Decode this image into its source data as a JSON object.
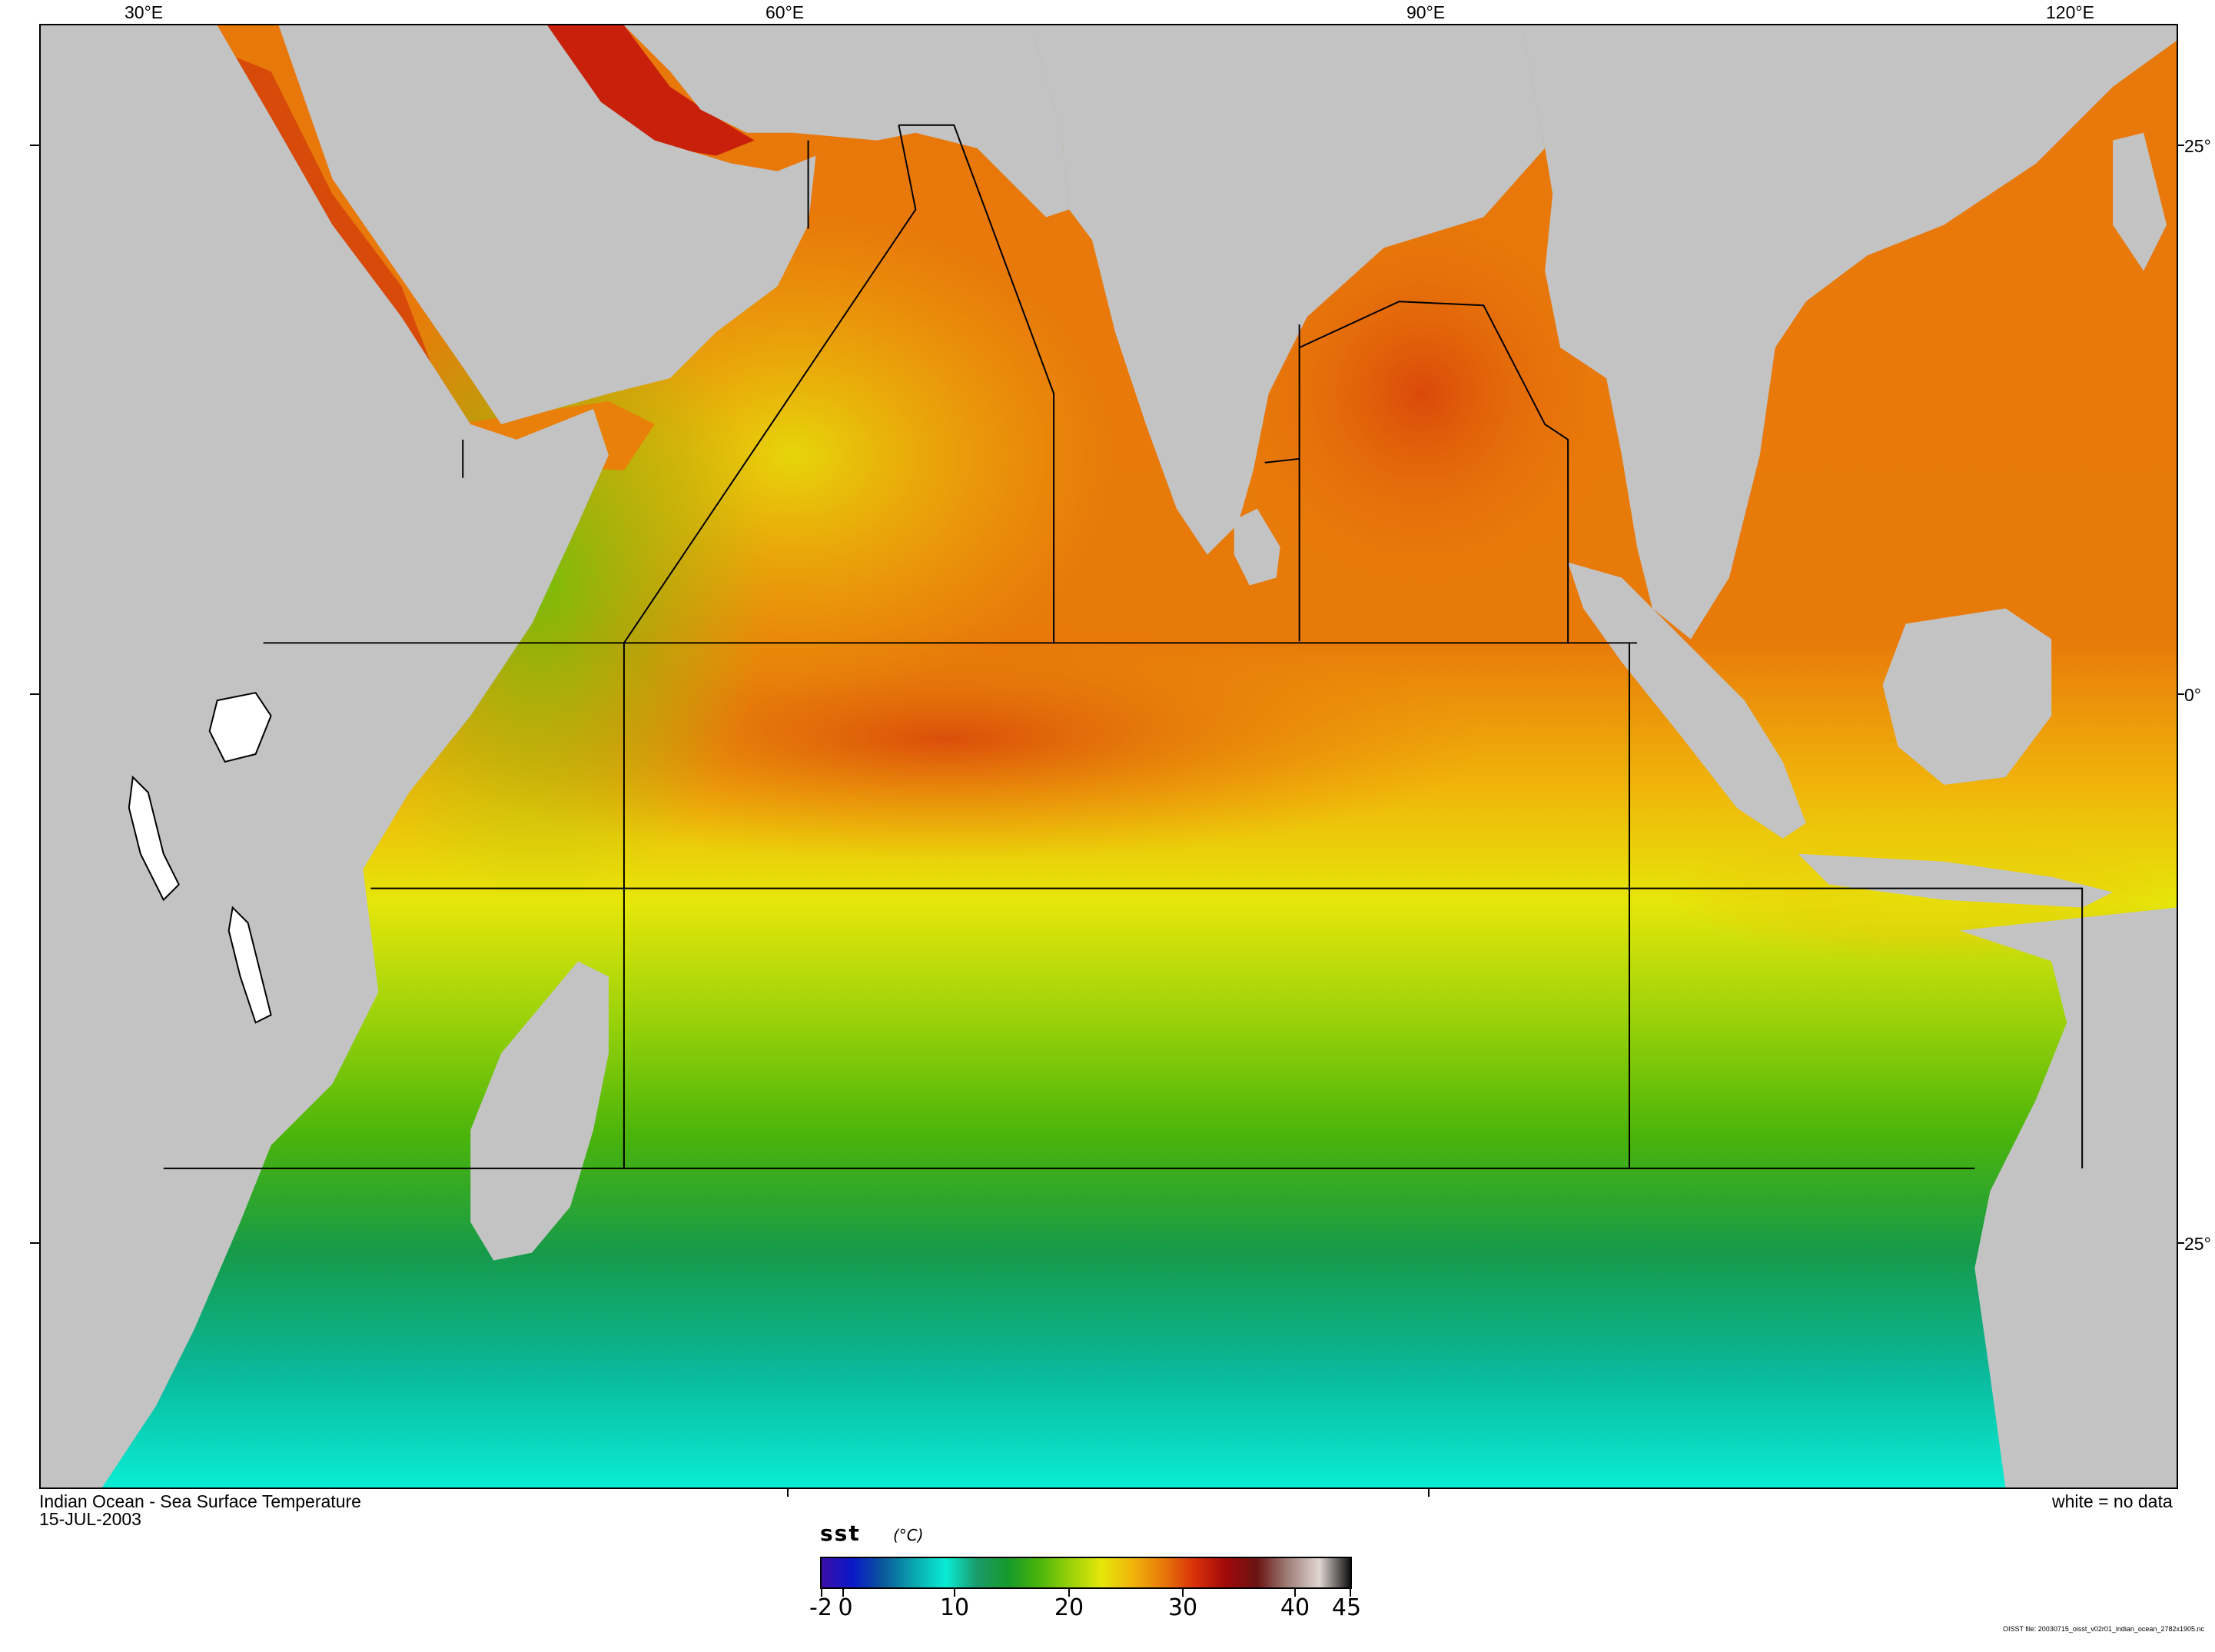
{
  "map": {
    "title": "Indian Ocean - Sea Surface Temperature",
    "date": "15-JUL-2003",
    "no_data_note": "white = no data",
    "longitude_labels": [
      "30°E",
      "60°E",
      "90°E",
      "120°E"
    ],
    "latitude_labels": [
      "25°",
      "0°",
      "25°"
    ],
    "land_color": "#c3c3c3",
    "no_data_color": "#ffffff",
    "boundary_color": "#000000",
    "sst_palette": [
      "#3b0fa8",
      "#0a18c8",
      "#0a5a9a",
      "#0aa8b0",
      "#0aecd4",
      "#1a9a6a",
      "#169a2a",
      "#4ab40a",
      "#9ad20a",
      "#e6e60a",
      "#f0b40a",
      "#e8780a",
      "#d8300a",
      "#a00a0a",
      "#6a1414",
      "#a08078",
      "#e0d6d2",
      "#101010"
    ]
  },
  "colorbar": {
    "variable": "sst",
    "unit": "(°C)",
    "tick_labels": [
      "-2",
      "0",
      "10",
      "20",
      "30",
      "40",
      "45"
    ]
  },
  "footnote": "OISST file: 20030715_oisst_v02r01_indian_ocean_2782x1905.nc"
}
